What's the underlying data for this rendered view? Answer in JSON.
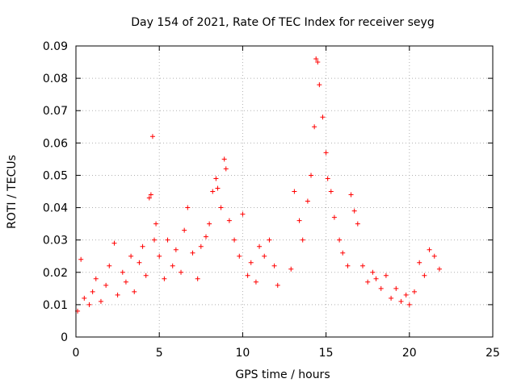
{
  "chart_data": {
    "type": "scatter",
    "title": "Day 154 of 2021, Rate Of TEC Index for receiver seyg",
    "xlabel": "GPS time / hours",
    "ylabel": "ROTI / TECUs",
    "xlim": [
      0,
      25
    ],
    "ylim": [
      0,
      0.09
    ],
    "x_ticks": [
      "0",
      "5",
      "10",
      "15",
      "20",
      "25"
    ],
    "y_ticks": [
      "0",
      "0.01",
      "0.02",
      "0.03",
      "0.04",
      "0.05",
      "0.06",
      "0.07",
      "0.08",
      "0.09"
    ],
    "grid": true,
    "marker": "+",
    "color": "#ff0000",
    "data_gap_hours": [
      12.3,
      12.8
    ],
    "series": [
      {
        "x": [
          0.1,
          0.3,
          0.5,
          0.8,
          1.0,
          1.2,
          1.5,
          1.8,
          2.0,
          2.3,
          2.5,
          2.8,
          3.0,
          3.3,
          3.5,
          3.8,
          4.0,
          4.2,
          4.4,
          4.5,
          4.6,
          4.7,
          4.8,
          5.0,
          5.3,
          5.5,
          5.8,
          6.0,
          6.3,
          6.5,
          6.7,
          7.0,
          7.3,
          7.5,
          7.8,
          8.0,
          8.2,
          8.4,
          8.5,
          8.7,
          8.9,
          9.0,
          9.2,
          9.5,
          9.8,
          10.0,
          10.3,
          10.5,
          10.8,
          11.0,
          11.3,
          11.6,
          11.9,
          12.1,
          12.9,
          13.1,
          13.4,
          13.6,
          13.9,
          14.1,
          14.3,
          14.4,
          14.5,
          14.6,
          14.8,
          15.0,
          15.1,
          15.3,
          15.5,
          15.8,
          16.0,
          16.3,
          16.5,
          16.7,
          16.9,
          17.2,
          17.5,
          17.8,
          18.0,
          18.3,
          18.6,
          18.9,
          19.2,
          19.5,
          19.8,
          20.0,
          20.3,
          20.6,
          20.9,
          21.2,
          21.5,
          21.8
        ],
        "y": [
          0.008,
          0.024,
          0.012,
          0.01,
          0.014,
          0.018,
          0.011,
          0.016,
          0.022,
          0.029,
          0.013,
          0.02,
          0.017,
          0.025,
          0.014,
          0.023,
          0.028,
          0.019,
          0.043,
          0.044,
          0.062,
          0.03,
          0.035,
          0.025,
          0.018,
          0.03,
          0.022,
          0.027,
          0.02,
          0.033,
          0.04,
          0.026,
          0.018,
          0.028,
          0.031,
          0.035,
          0.045,
          0.049,
          0.046,
          0.04,
          0.055,
          0.052,
          0.036,
          0.03,
          0.025,
          0.038,
          0.019,
          0.023,
          0.017,
          0.028,
          0.025,
          0.03,
          0.022,
          0.016,
          0.021,
          0.045,
          0.036,
          0.03,
          0.042,
          0.05,
          0.065,
          0.086,
          0.085,
          0.078,
          0.068,
          0.057,
          0.049,
          0.045,
          0.037,
          0.03,
          0.026,
          0.022,
          0.044,
          0.039,
          0.035,
          0.022,
          0.017,
          0.02,
          0.018,
          0.015,
          0.019,
          0.012,
          0.015,
          0.011,
          0.013,
          0.01,
          0.014,
          0.023,
          0.019,
          0.027,
          0.025,
          0.021
        ]
      }
    ]
  }
}
